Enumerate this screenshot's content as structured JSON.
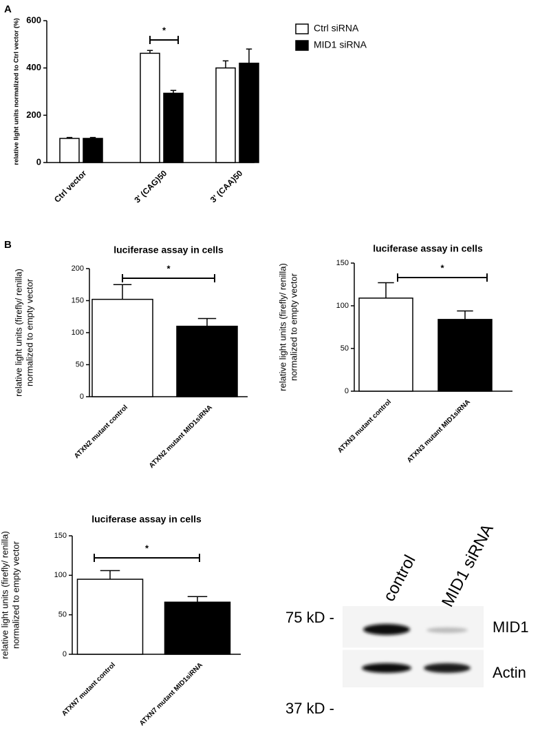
{
  "panel_labels": [
    "A",
    "B"
  ],
  "chart_data": [
    {
      "type": "bar",
      "ylabel": [
        "relative light units normalized to Ctrl vector (%)"
      ],
      "categories": [
        "Ctrl vector",
        "3' (CAG)50",
        "3' (CAA)50"
      ],
      "series": [
        {
          "name": "Ctrl siRNA",
          "color": "#ffffff",
          "values": [
            102,
            462,
            400
          ],
          "errors": [
            4,
            12,
            30
          ]
        },
        {
          "name": "MID1 siRNA",
          "color": "#000000",
          "values": [
            102,
            293,
            420
          ],
          "errors": [
            4,
            12,
            60
          ]
        }
      ],
      "ylim": [
        0,
        600
      ],
      "yticks": [
        0,
        200,
        400,
        600
      ],
      "annotations": [
        "*"
      ]
    },
    {
      "type": "bar",
      "title": "luciferase assay in cells",
      "ylabel": [
        "relative light units (firefly/ renilla)",
        "normalized to empty vector"
      ],
      "categories": [
        "ATXN2 mutant control",
        "ATXN2 mutant MID1siRNA"
      ],
      "values": [
        152,
        110
      ],
      "errors": [
        23,
        12
      ],
      "colors": [
        "#ffffff",
        "#000000"
      ],
      "ylim": [
        0,
        200
      ],
      "yticks": [
        0,
        50,
        100,
        150,
        200
      ],
      "annotations": [
        "*"
      ]
    },
    {
      "type": "bar",
      "title": "luciferase assay in cells",
      "ylabel": [
        "relative light units (firefly/ renilla)",
        "normalized to empty vector"
      ],
      "categories": [
        "ATXN3 mutant control",
        "ATXN3 mutant MID1siRNA"
      ],
      "values": [
        109,
        84
      ],
      "errors": [
        18,
        10
      ],
      "colors": [
        "#ffffff",
        "#000000"
      ],
      "ylim": [
        0,
        150
      ],
      "yticks": [
        0,
        50,
        100,
        150
      ],
      "annotations": [
        "*"
      ]
    },
    {
      "type": "bar",
      "title": "luciferase assay in cells",
      "ylabel": [
        "relative light units (firefly/ renilla)",
        "normalized to empty vector"
      ],
      "categories": [
        "ATXN7 mutant control",
        "ATXN7 mutant MID1siRNA"
      ],
      "values": [
        95,
        66
      ],
      "errors": [
        11,
        7
      ],
      "colors": [
        "#ffffff",
        "#000000"
      ],
      "ylim": [
        0,
        150
      ],
      "yticks": [
        0,
        50,
        100,
        150
      ],
      "annotations": [
        "*"
      ]
    }
  ],
  "blot": {
    "lanes": [
      "control",
      "MID1 siRNA"
    ],
    "markers": [
      "75 kD -",
      "37 kD -"
    ],
    "bands": [
      "MID1",
      "Actin"
    ]
  }
}
